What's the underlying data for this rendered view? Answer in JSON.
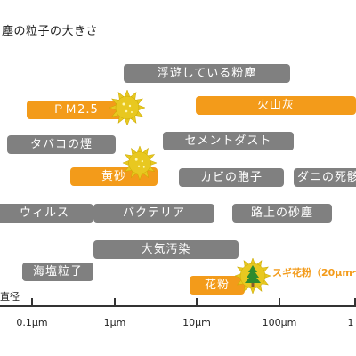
{
  "title": "塵の粒子の大きさ",
  "pills": [
    {
      "id": "fuyu",
      "label": "浮遊している粉塵",
      "color": "gray"
    },
    {
      "id": "pm25",
      "label": "ＰＭ2.5",
      "color": "orange"
    },
    {
      "id": "kazan",
      "label": "火山灰",
      "color": "orange"
    },
    {
      "id": "tabako",
      "label": "タバコの煙",
      "color": "gray"
    },
    {
      "id": "cement",
      "label": "セメントダスト",
      "color": "gray"
    },
    {
      "id": "kosa",
      "label": "黄砂",
      "color": "orange"
    },
    {
      "id": "kabi",
      "label": "カビの胞子",
      "color": "gray"
    },
    {
      "id": "dani",
      "label": "ダニの死骸",
      "color": "gray"
    },
    {
      "id": "virus",
      "label": "ウィルス",
      "color": "gray"
    },
    {
      "id": "bacteria",
      "label": "バクテリア",
      "color": "gray"
    },
    {
      "id": "rojo",
      "label": "路上の砂塵",
      "color": "gray"
    },
    {
      "id": "taiki",
      "label": "大気汚染",
      "color": "gray"
    },
    {
      "id": "kaien",
      "label": "海塩粒子",
      "color": "gray"
    },
    {
      "id": "kafun",
      "label": "花粉",
      "color": "orange"
    }
  ],
  "sugi_label": "スギ花粉（20μm～",
  "axis": {
    "title": "直径",
    "ticks": [
      "0.1μm",
      "1μm",
      "10μm",
      "100μm",
      "1"
    ]
  },
  "colors": {
    "orange": "#f39b1a",
    "gray": "#808080",
    "particle": "#e8c820"
  }
}
